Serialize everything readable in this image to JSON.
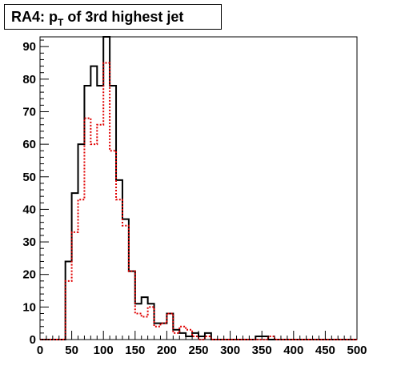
{
  "title": {
    "prefix": "RA4: p",
    "subscript": "T",
    "suffix": " of 3rd highest jet"
  },
  "chart_data": {
    "type": "histogram",
    "bin_width": 10,
    "x_min": 0,
    "x_max": 500,
    "xlim": [
      0,
      500
    ],
    "ylim": [
      0,
      93
    ],
    "x_ticks": [
      "0",
      "50",
      "100",
      "150",
      "200",
      "250",
      "300",
      "350",
      "400",
      "450",
      "500"
    ],
    "y_ticks": [
      "0",
      "10",
      "20",
      "30",
      "40",
      "50",
      "60",
      "70",
      "80",
      "90"
    ],
    "grid": false,
    "series": [
      {
        "style": "solid",
        "color": "#000000",
        "values": [
          0,
          0,
          0,
          0,
          24,
          45,
          60,
          78,
          84,
          78,
          93,
          78,
          49,
          37,
          21,
          11,
          13,
          11,
          5,
          5,
          8,
          3,
          2,
          1,
          2,
          1,
          2,
          0,
          0,
          0,
          0,
          0,
          0,
          0,
          1,
          1,
          0,
          0,
          0,
          0,
          0,
          0,
          0,
          0,
          0,
          0,
          0,
          0,
          0,
          0
        ]
      },
      {
        "style": "dotted",
        "color": "#e00000",
        "values": [
          0,
          0,
          0,
          0,
          18,
          33,
          43,
          68,
          60,
          66,
          85,
          58,
          43,
          35,
          21,
          8,
          7,
          10,
          4,
          5,
          8,
          2,
          4,
          3,
          1,
          0,
          1,
          0,
          0,
          0,
          0,
          0,
          0,
          0,
          0,
          0,
          1,
          0,
          0,
          0,
          0,
          0,
          0,
          0,
          0,
          0,
          0,
          0,
          0,
          0
        ]
      }
    ]
  }
}
